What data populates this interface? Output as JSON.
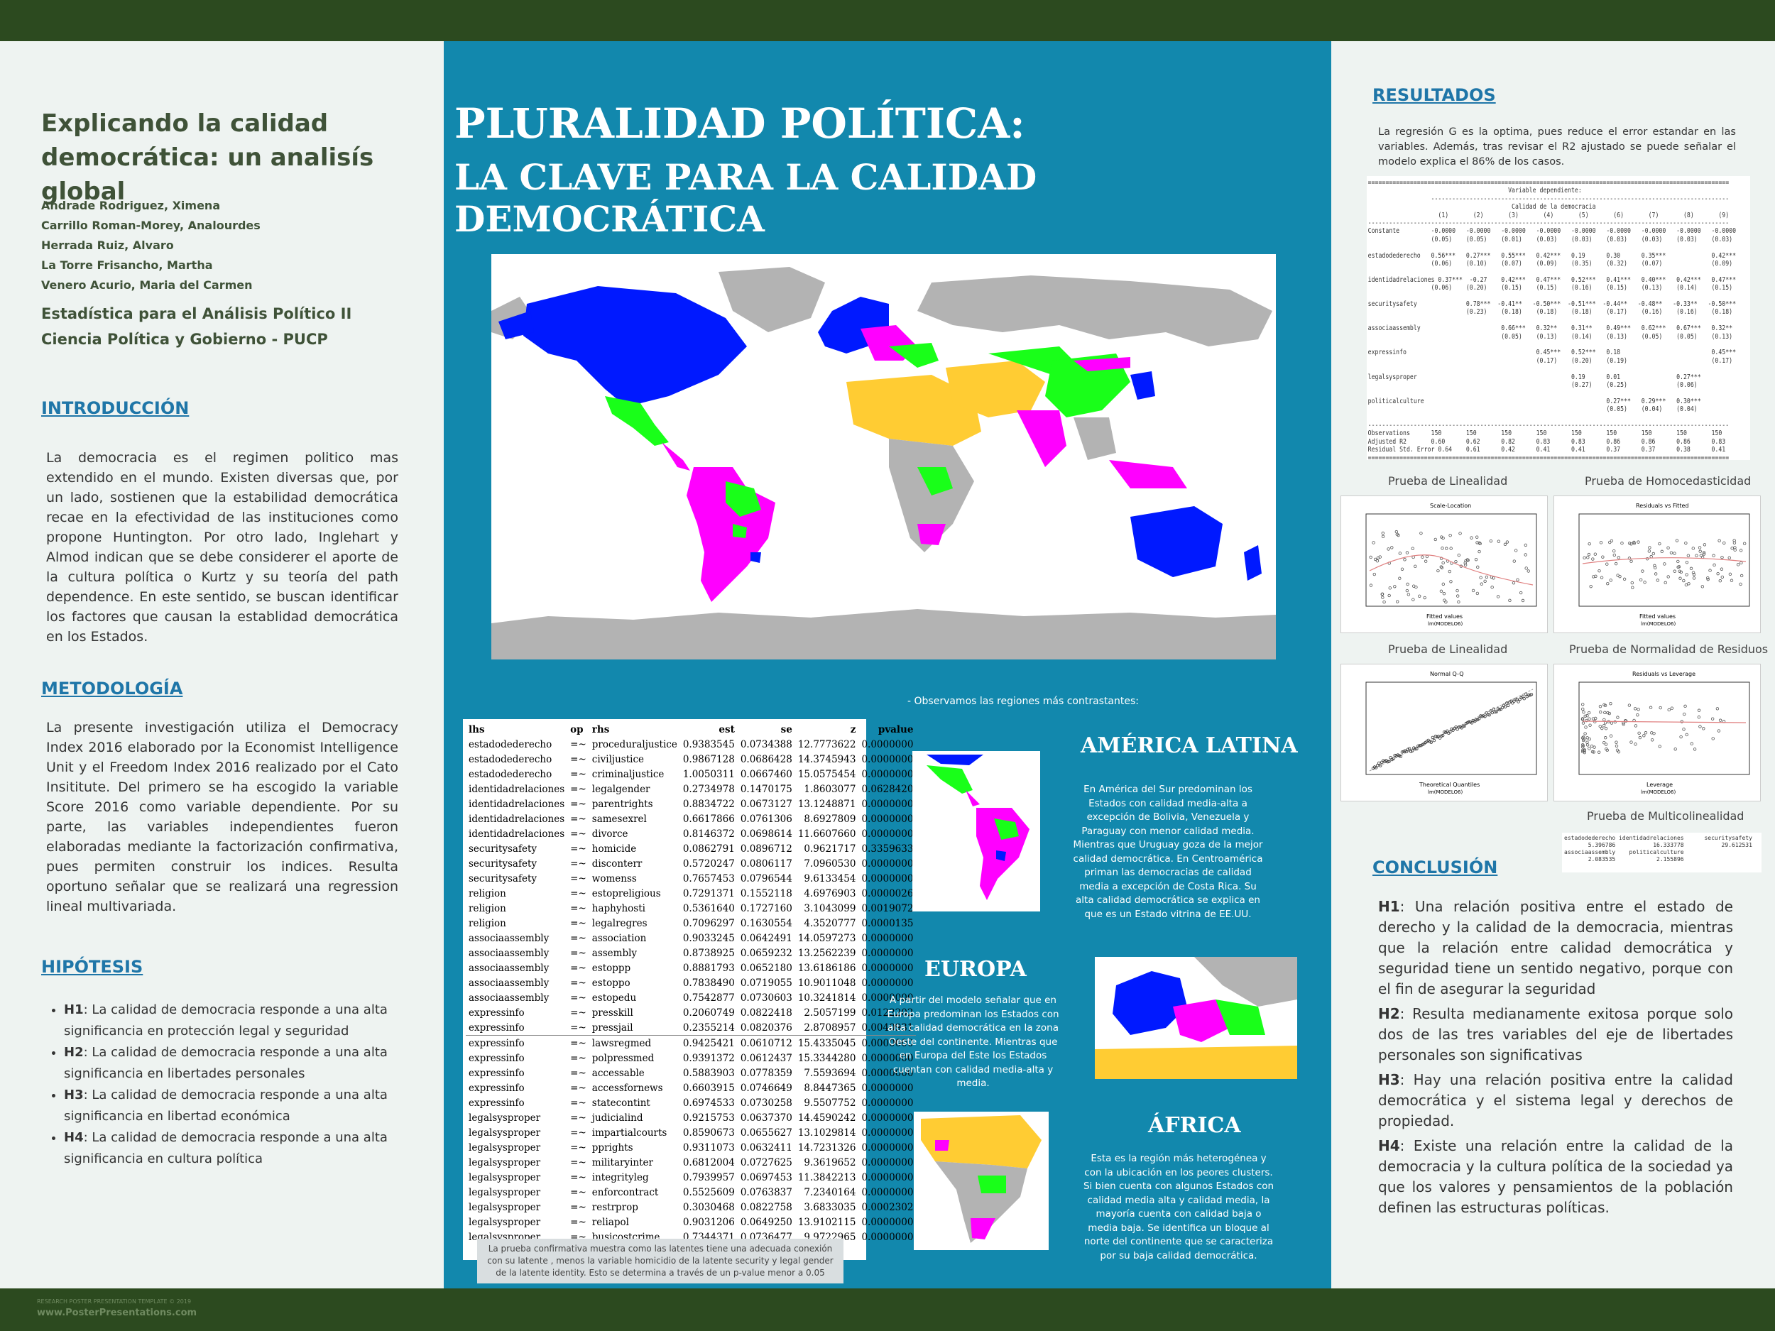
{
  "left": {
    "title": [
      "Explicando la calidad",
      "democrática: un analisís global"
    ],
    "authors": [
      "Andrade Rodriguez, Ximena",
      "Carrillo Roman-Morey, Analourdes",
      "Herrada Ruiz, Alvaro",
      "La Torre Frisancho, Martha",
      "Venero Acurio, Maria del Carmen"
    ],
    "course": [
      "Estadística para el Análisis Político II",
      "Ciencia Política y Gobierno - PUCP"
    ],
    "intro_title": "INTRODUCCIÓN",
    "intro_text": "La democracia es el regimen politico mas extendido en el mundo. Existen diversas que, por un lado, sostienen que la estabilidad democrática recae en la efectividad de las instituciones como propone Huntington. Por otro lado, Inglehart y Almod indican que se debe considerer el aporte de la cultura política o Kurtz y su teoría del path dependence. En este sentido, se buscan identificar los factores que causan la establidad democrática en los Estados.",
    "metodo_title": "METODOLOGÍA",
    "metodo_text": "La presente investigación utiliza el Democracy Index 2016 elaborado por la Economist Intelligence Unit y el Freedom Index 2016 realizado por el Cato Insititute. Del primero se ha escogido la variable Score 2016 como variable dependiente. Por su parte, las variables independientes fueron elaboradas mediante la factorización confirmativa, pues permiten construir los indices. Resulta oportuno señalar que se realizará una regression lineal multivariada.",
    "hip_title": "HIPÓTESIS",
    "hipotesis": [
      {
        "tag": "H1",
        "text": ": La calidad de democracia responde a una alta significancia en protección legal y seguridad"
      },
      {
        "tag": "H2",
        "text": ": La calidad de democracia responde a una alta significancia en libertades personales"
      },
      {
        "tag": "H3",
        "text": ": La calidad de democracia responde a una alta significancia en libertad económica"
      },
      {
        "tag": "H4",
        "text": ": La calidad de democracia responde a una alta significancia en cultura política"
      }
    ]
  },
  "center": {
    "title1": "PLURALIDAD POLÍTICA:",
    "title2": "LA CLAVE PARA LA CALIDAD DEMOCRÁTICA",
    "observamos": "-   Observamos las regiones más contrastantes:",
    "table_headers": [
      "lhs",
      "op",
      "rhs",
      "est",
      "se",
      "z",
      "pvalue"
    ],
    "table_rows": [
      [
        "estadodederecho",
        "=~",
        "proceduraljustice",
        "0.9383545",
        "0.0734388",
        "12.7773622",
        "0.0000000"
      ],
      [
        "estadodederecho",
        "=~",
        "civiljustice",
        "0.9867128",
        "0.0686428",
        "14.3745943",
        "0.0000000"
      ],
      [
        "estadodederecho",
        "=~",
        "criminaljustice",
        "1.0050311",
        "0.0667460",
        "15.0575454",
        "0.0000000"
      ],
      [
        "identidadrelaciones",
        "=~",
        "legalgender",
        "0.2734978",
        "0.1470175",
        "1.8603077",
        "0.0628420"
      ],
      [
        "identidadrelaciones",
        "=~",
        "parentrights",
        "0.8834722",
        "0.0673127",
        "13.1248871",
        "0.0000000"
      ],
      [
        "identidadrelaciones",
        "=~",
        "samesexrel",
        "0.6617866",
        "0.0761306",
        "8.6927809",
        "0.0000000"
      ],
      [
        "identidadrelaciones",
        "=~",
        "divorce",
        "0.8146372",
        "0.0698614",
        "11.6607660",
        "0.0000000"
      ],
      [
        "securitysafety",
        "=~",
        "homicide",
        "0.0862791",
        "0.0896712",
        "0.9621717",
        "0.3359633"
      ],
      [
        "securitysafety",
        "=~",
        "disconterr",
        "0.5720247",
        "0.0806117",
        "7.0960530",
        "0.0000000"
      ],
      [
        "securitysafety",
        "=~",
        "womenss",
        "0.7657453",
        "0.0796544",
        "9.6133454",
        "0.0000000"
      ],
      [
        "religion",
        "=~",
        "estopreligious",
        "0.7291371",
        "0.1552118",
        "4.6976903",
        "0.0000026"
      ],
      [
        "religion",
        "=~",
        "haphyhosti",
        "0.5361640",
        "0.1727160",
        "3.1043099",
        "0.0019072"
      ],
      [
        "religion",
        "=~",
        "legalregres",
        "0.7096297",
        "0.1630554",
        "4.3520777",
        "0.0000135"
      ],
      [
        "associaassembly",
        "=~",
        "association",
        "0.9033245",
        "0.0642491",
        "14.0597273",
        "0.0000000"
      ],
      [
        "associaassembly",
        "=~",
        "assembly",
        "0.8738925",
        "0.0659232",
        "13.2562239",
        "0.0000000"
      ],
      [
        "associaassembly",
        "=~",
        "estoppp",
        "0.8881793",
        "0.0652180",
        "13.6186186",
        "0.0000000"
      ],
      [
        "associaassembly",
        "=~",
        "estoppo",
        "0.7838490",
        "0.0719055",
        "10.9011048",
        "0.0000000"
      ],
      [
        "associaassembly",
        "=~",
        "estopedu",
        "0.7542877",
        "0.0730603",
        "10.3241814",
        "0.0000000"
      ],
      [
        "expressinfo",
        "=~",
        "presskill",
        "0.2060749",
        "0.0822418",
        "2.5057199",
        "0.0122202"
      ],
      [
        "expressinfo",
        "=~",
        "pressjail",
        "0.2355214",
        "0.0820376",
        "2.8708957",
        "0.0040931"
      ],
      [
        "expressinfo",
        "=~",
        "lawsregmed",
        "0.9425421",
        "0.0610712",
        "15.4335045",
        "0.0000000"
      ],
      [
        "expressinfo",
        "=~",
        "polpressmed",
        "0.9391372",
        "0.0612437",
        "15.3344280",
        "0.0000000"
      ],
      [
        "expressinfo",
        "=~",
        "accessable",
        "0.5883903",
        "0.0778359",
        "7.5593694",
        "0.0000000"
      ],
      [
        "expressinfo",
        "=~",
        "accessfornews",
        "0.6603915",
        "0.0746649",
        "8.8447365",
        "0.0000000"
      ],
      [
        "expressinfo",
        "=~",
        "statecontint",
        "0.6974533",
        "0.0730258",
        "9.5507752",
        "0.0000000"
      ],
      [
        "legalsysproper",
        "=~",
        "judicialind",
        "0.9215753",
        "0.0637370",
        "14.4590242",
        "0.0000000"
      ],
      [
        "legalsysproper",
        "=~",
        "impartialcourts",
        "0.8590673",
        "0.0655627",
        "13.1029814",
        "0.0000000"
      ],
      [
        "legalsysproper",
        "=~",
        "pprights",
        "0.9311073",
        "0.0632411",
        "14.7231326",
        "0.0000000"
      ],
      [
        "legalsysproper",
        "=~",
        "militaryinter",
        "0.6812004",
        "0.0727625",
        "9.3619652",
        "0.0000000"
      ],
      [
        "legalsysproper",
        "=~",
        "integrityleg",
        "0.7939957",
        "0.0697453",
        "11.3842213",
        "0.0000000"
      ],
      [
        "legalsysproper",
        "=~",
        "enforcontract",
        "0.5525609",
        "0.0763837",
        "7.2340164",
        "0.0000000"
      ],
      [
        "legalsysproper",
        "=~",
        "restrprop",
        "0.3030468",
        "0.0822758",
        "3.6833035",
        "0.0002302"
      ],
      [
        "legalsysproper",
        "=~",
        "reliapol",
        "0.9031206",
        "0.0649250",
        "13.9102115",
        "0.0000000"
      ],
      [
        "legalsysproper",
        "=~",
        "busicostcrime",
        "0.7344371",
        "0.0736477",
        "9.9722965",
        "0.0000000"
      ]
    ],
    "table_note": "La prueba confirmativa muestra como las latentes tiene una adecuada conexión con su latente , menos la variable homicidio de la latente security y legal gender de la latente identity. Esto se determina a través de un p-value menor a 0.05",
    "america_title": "AMÉRICA LATINA",
    "america_text": "En América del Sur predominan los Estados con calidad media-alta a excepción de Bolivia, Venezuela y Paraguay con menor calidad media. Mientras que Uruguay goza de la mejor calidad democrática. En Centroamérica priman las democracias de calidad media a excepción de Costa Rica. Su alta calidad democrática se explica en que es un Estado vitrina de EE.UU.",
    "europa_title": "EUROPA",
    "europa_text": "A partir del modelo señalar que en Europa predominan los Estados con alta calidad democrática en la zona Oeste del continente. Mientras que en Europa del Este los Estados cuentan con calidad media-alta y media.",
    "africa_title": "ÁFRICA",
    "africa_text": "Esta es la  región más heterogénea y con la ubicación en los peores clusters. Si bien cuenta con algunos Estados con calidad media alta y calidad media, la mayoría cuenta con calidad baja o media baja. Se identifica un bloque al norte del continente que se caracteriza por su baja calidad democrática.",
    "colors": {
      "high": "#0019ff",
      "mediumhigh": "#ff00ff",
      "medium": "#19ff19",
      "low": "#ffcc33",
      "na": "#b3b3b3"
    }
  },
  "right": {
    "res_title": "RESULTADOS",
    "res_text": "La regresión G es la optima, pues reduce el error estandar en las variables. Además,  tras revisar el R2 ajustado se puede señalar el modelo explica el 86% de los casos.",
    "regression": [
      "=======================================================================================================",
      "                                        Variable dependiente:",
      "                  -------------------------------------------------------------------------------------",
      "                                         Calidad de la democracia",
      "                    (1)       (2)       (3)       (4)       (5)       (6)       (7)       (8)       (9)",
      "-------------------------------------------------------------------------------------------------------",
      "Constante         -0.0000   -0.0000   -0.0000   -0.0000   -0.0000   -0.0000   -0.0000   -0.0000   -0.0000",
      "                  (0.05)    (0.05)    (0.01)    (0.03)    (0.03)    (0.03)    (0.03)    (0.03)    (0.03)",
      "",
      "estadodederecho   0.56***   0.27***   0.55***   0.42***   0.19      0.30      0.35***             0.42***",
      "                  (0.06)    (0.10)    (0.07)    (0.09)    (0.35)    (0.32)    (0.07)              (0.09)",
      "",
      "identidadrelaciones 0.37***  -0.27    0.42***   0.47***   0.52***   0.41***   0.40***   0.42***   0.47***",
      "                  (0.06)    (0.20)    (0.15)    (0.15)    (0.16)    (0.15)    (0.13)    (0.14)    (0.15)",
      "",
      "securitysafety              0.78***  -0.41**   -0.50***  -0.51***  -0.44**   -0.48**   -0.33**   -0.50***",
      "                            (0.23)    (0.18)    (0.18)    (0.18)    (0.17)    (0.16)    (0.16)    (0.18)",
      "",
      "associaassembly                       0.66***   0.32**    0.31**    0.49***   0.62***   0.67***   0.32**",
      "                                      (0.05)    (0.13)    (0.14)    (0.13)    (0.05)    (0.05)    (0.13)",
      "",
      "expressinfo                                     0.45***   0.52***   0.18                          0.45***",
      "                                                (0.17)    (0.20)    (0.19)                        (0.17)",
      "",
      "legalsysproper                                            0.19      0.01                0.27***",
      "                                                          (0.27)    (0.25)              (0.06)",
      "",
      "politicalculture                                                    0.27***   0.29***   0.30***",
      "                                                                    (0.05)    (0.04)    (0.04)",
      "",
      "-------------------------------------------------------------------------------------------------------",
      "Observations      150       150       150       150       150       150       150       150       150",
      "Adjusted R2       0.60      0.62      0.82      0.83      0.83      0.86      0.86      0.86      0.83",
      "Residual Std. Error 0.64    0.61      0.42      0.41      0.41      0.37      0.37      0.38      0.41",
      "=======================================================================================================",
      "Notas:                                                                     *p<0.1; **p<0.05; ***p<0.01"
    ],
    "cap_lin1": "Prueba de Linealidad",
    "cap_homo": "Prueba de Homocedasticidad",
    "cap_lin2": "Prueba de Linealidad",
    "cap_norm": "Prueba de Normalidad de Residuos",
    "cap_multi": "Prueba de Multicolinealidad",
    "plot1_title": "Scale-Location",
    "plot2_title": "Residuals vs Fitted",
    "plot3_title": "Normal Q-Q",
    "plot4_title": "Residuals vs Leverage",
    "plot_xlabel_fitted": "Fitted values",
    "plot_xlabel_qq": "Theoretical Quantiles",
    "plot_xlabel_lev": "Leverage",
    "plot_sub": "lm(MODELO6)",
    "vif_line1": "estadodederecho identidadrelaciones      securitysafety",
    "vif_line2": "       5.396786           16.333778           29.612531",
    "vif_line3": "associaassembly    politicalculture",
    "vif_line4": "       2.083535            2.155896",
    "conc_title": "CONCLUSIÓN",
    "conclusiones": [
      {
        "tag": "H1",
        "text": ":   Una relación positiva entre el estado de derecho y la calidad de la democracia, mientras que la relación entre calidad democrática y seguridad tiene un sentido negativo, porque con el fin de asegurar la seguridad"
      },
      {
        "tag": "H2",
        "text": ":  Resulta medianamente exitosa porque solo dos de las tres variables del eje de libertades personales son significativas"
      },
      {
        "tag": "H3",
        "text": ":   Hay una relación positiva entre la calidad democrática y el sistema legal y derechos de propiedad."
      },
      {
        "tag": "H4",
        "text": ":   Existe una relación entre la calidad de la democracia y la cultura política de la sociedad ya que los valores y pensamientos de la población definen las estructuras políticas."
      }
    ]
  },
  "footer": {
    "template": "RESEARCH POSTER PRESENTATION TEMPLATE © 2019",
    "url": "www.PosterPresentations.com"
  }
}
